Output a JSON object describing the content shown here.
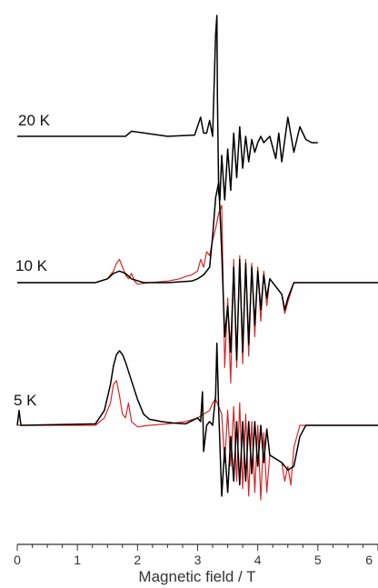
{
  "chart_data": {
    "type": "line",
    "xlabel": "Magnetic field / T",
    "xlim": [
      0,
      6
    ],
    "x_ticks": [
      "0",
      "1",
      "2",
      "3",
      "4",
      "5",
      "6"
    ],
    "colors": {
      "experiment": "#000000",
      "simulation": "#d62728"
    },
    "panels": [
      {
        "label": "20 K",
        "series": [
          {
            "role": "experiment",
            "color": "#000000",
            "x": [
              0.0,
              1.8,
              1.9,
              2.5,
              2.95,
              3.05,
              3.1,
              3.15,
              3.2,
              3.25,
              3.3,
              3.32,
              3.33,
              3.35,
              3.37,
              3.4,
              3.45,
              3.5,
              3.55,
              3.6,
              3.65,
              3.7,
              3.75,
              3.8,
              3.85,
              3.9,
              3.95,
              4.0,
              4.05,
              4.1,
              4.2,
              4.3,
              4.35,
              4.4,
              4.5,
              4.6,
              4.7,
              4.8,
              4.9,
              5.0
            ],
            "y": [
              0.0,
              0.0,
              0.08,
              0.0,
              0.02,
              0.3,
              0.05,
              0.05,
              0.25,
              0.0,
              1.6,
              1.9,
              0.6,
              -0.9,
              -1.0,
              -0.3,
              -1.0,
              -0.2,
              -0.85,
              0.05,
              -0.65,
              0.15,
              -0.5,
              0.0,
              -0.4,
              -0.05,
              -0.25,
              -0.1,
              0.0,
              -0.1,
              0.0,
              -0.35,
              0.05,
              -0.4,
              0.3,
              -0.25,
              0.15,
              -0.05,
              -0.1,
              -0.1
            ]
          }
        ]
      },
      {
        "label": "10 K",
        "series": [
          {
            "role": "experiment",
            "color": "#000000",
            "x": [
              0.0,
              1.3,
              1.5,
              1.6,
              1.7,
              1.8,
              1.9,
              2.1,
              2.5,
              2.9,
              3.0,
              3.1,
              3.2,
              3.25,
              3.3,
              3.35,
              3.4,
              3.45,
              3.5,
              3.55,
              3.6,
              3.65,
              3.7,
              3.75,
              3.8,
              3.85,
              3.9,
              3.95,
              4.0,
              4.05,
              4.1,
              4.15,
              4.2,
              4.3,
              4.4,
              4.45,
              4.5,
              4.6,
              6.0
            ],
            "y": [
              0.0,
              0.0,
              0.05,
              0.12,
              0.15,
              0.12,
              0.05,
              0.0,
              0.0,
              0.02,
              0.05,
              0.1,
              0.2,
              0.6,
              1.1,
              1.3,
              0.4,
              -0.7,
              -0.3,
              -0.9,
              0.2,
              -1.0,
              0.3,
              -0.9,
              0.25,
              -0.8,
              0.2,
              -0.55,
              0.15,
              -0.35,
              0.1,
              -0.2,
              0.05,
              -0.05,
              -0.15,
              -0.35,
              -0.2,
              0.0,
              0.0
            ]
          },
          {
            "role": "simulation",
            "color": "#d62728",
            "x": [
              0.0,
              1.3,
              1.5,
              1.6,
              1.65,
              1.7,
              1.75,
              1.8,
              1.85,
              1.9,
              1.95,
              2.0,
              2.2,
              2.5,
              2.7,
              2.8,
              2.9,
              3.0,
              3.05,
              3.1,
              3.15,
              3.2,
              3.25,
              3.3,
              3.35,
              3.4,
              3.45,
              3.5,
              3.55,
              3.6,
              3.65,
              3.7,
              3.75,
              3.8,
              3.85,
              3.9,
              3.95,
              4.0,
              4.05,
              4.1,
              4.15,
              4.2,
              4.3,
              4.4,
              4.45,
              4.5,
              4.6,
              6.0
            ],
            "y": [
              0.0,
              0.0,
              0.05,
              0.15,
              0.25,
              0.3,
              0.2,
              0.1,
              0.05,
              0.12,
              0.02,
              -0.02,
              0.0,
              0.02,
              0.05,
              0.08,
              0.1,
              0.15,
              0.3,
              0.2,
              0.4,
              0.35,
              0.55,
              0.7,
              0.9,
              1.0,
              -1.1,
              -0.2,
              -1.3,
              0.3,
              -1.1,
              0.35,
              -1.05,
              0.3,
              -0.95,
              0.25,
              -0.7,
              0.2,
              -0.5,
              0.15,
              -0.3,
              0.05,
              -0.05,
              -0.15,
              -0.4,
              -0.25,
              0.0,
              0.0
            ]
          }
        ]
      },
      {
        "label": "5 K",
        "series": [
          {
            "role": "experiment",
            "color": "#000000",
            "x": [
              0.0,
              0.03,
              0.06,
              1.3,
              1.45,
              1.55,
              1.6,
              1.65,
              1.7,
              1.75,
              1.8,
              1.9,
              2.0,
              2.1,
              2.2,
              2.4,
              2.6,
              2.8,
              3.0,
              3.05,
              3.08,
              3.1,
              3.15,
              3.2,
              3.25,
              3.3,
              3.32,
              3.35,
              3.4,
              3.45,
              3.5,
              3.55,
              3.6,
              3.65,
              3.7,
              3.75,
              3.8,
              3.85,
              3.9,
              3.95,
              4.0,
              4.05,
              4.1,
              4.15,
              4.2,
              4.3,
              4.4,
              4.5,
              4.6,
              4.7,
              4.8,
              6.0
            ],
            "y": [
              0.0,
              0.2,
              0.0,
              0.02,
              0.2,
              0.55,
              0.8,
              0.95,
              1.0,
              0.95,
              0.85,
              0.6,
              0.35,
              0.15,
              0.08,
              0.05,
              0.03,
              0.02,
              0.1,
              0.05,
              0.45,
              -0.35,
              0.0,
              0.05,
              0.0,
              0.4,
              1.1,
              0.2,
              -0.95,
              -0.3,
              -0.9,
              -0.15,
              -0.75,
              0.05,
              -0.8,
              0.05,
              -0.75,
              0.05,
              -0.65,
              0.05,
              -0.55,
              0.0,
              -0.5,
              -0.05,
              -0.4,
              -0.45,
              -0.5,
              -0.6,
              -0.55,
              -0.15,
              0.0,
              0.0
            ]
          },
          {
            "role": "simulation",
            "color": "#d62728",
            "x": [
              0.0,
              1.3,
              1.45,
              1.55,
              1.6,
              1.65,
              1.7,
              1.75,
              1.8,
              1.85,
              1.9,
              2.0,
              2.2,
              2.5,
              2.8,
              3.0,
              3.1,
              3.2,
              3.25,
              3.3,
              3.35,
              3.4,
              3.45,
              3.5,
              3.55,
              3.6,
              3.65,
              3.7,
              3.75,
              3.8,
              3.85,
              3.9,
              3.95,
              4.0,
              4.05,
              4.1,
              4.15,
              4.2,
              4.3,
              4.4,
              4.45,
              4.5,
              4.55,
              4.6,
              4.7,
              6.0
            ],
            "y": [
              0.0,
              0.0,
              0.1,
              0.3,
              0.55,
              0.6,
              0.4,
              0.15,
              0.1,
              0.3,
              0.05,
              -0.02,
              0.0,
              0.02,
              0.05,
              0.1,
              0.15,
              0.2,
              0.3,
              0.35,
              0.25,
              0.15,
              -0.5,
              0.2,
              -0.55,
              0.25,
              -0.75,
              0.3,
              -0.85,
              0.15,
              -0.95,
              0.05,
              -0.9,
              0.0,
              -1.0,
              -0.1,
              -0.9,
              -0.4,
              -0.45,
              -0.5,
              -0.75,
              -0.55,
              -0.8,
              -0.3,
              0.0,
              0.0
            ]
          }
        ]
      }
    ]
  }
}
